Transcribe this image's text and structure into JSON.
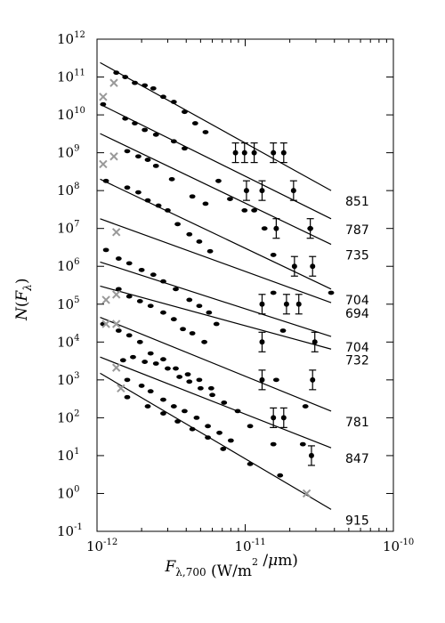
{
  "chart_data": {
    "type": "scatter",
    "title": "",
    "xlabel": "F_{λ,700} (W/m^2 /μm)",
    "ylabel": "N(F_λ)",
    "xscale": "log",
    "yscale": "log",
    "xlim": [
      1e-12,
      1e-10
    ],
    "ylim": [
      0.1,
      1000000000000.0
    ],
    "grid": false,
    "x_ticks": [
      {
        "base": "10",
        "exp": "-12",
        "value": 1e-12
      },
      {
        "base": "10",
        "exp": "-11",
        "value": 1e-11
      },
      {
        "base": "10",
        "exp": "-10",
        "value": 1e-10
      }
    ],
    "y_ticks": [
      {
        "base": "10",
        "exp": "-1",
        "value": 0.1
      },
      {
        "base": "10",
        "exp": "0",
        "value": 1
      },
      {
        "base": "10",
        "exp": "1",
        "value": 10
      },
      {
        "base": "10",
        "exp": "2",
        "value": 100
      },
      {
        "base": "10",
        "exp": "3",
        "value": 1000
      },
      {
        "base": "10",
        "exp": "4",
        "value": 10000
      },
      {
        "base": "10",
        "exp": "5",
        "value": 100000
      },
      {
        "base": "10",
        "exp": "6",
        "value": 1000000
      },
      {
        "base": "10",
        "exp": "7",
        "value": 10000000
      },
      {
        "base": "10",
        "exp": "8",
        "value": 100000000
      },
      {
        "base": "10",
        "exp": "9",
        "value": 1000000000
      },
      {
        "base": "10",
        "exp": "10",
        "value": 10000000000
      },
      {
        "base": "10",
        "exp": "11",
        "value": 100000000000
      },
      {
        "base": "10",
        "exp": "12",
        "value": 1000000000000
      }
    ],
    "series": [
      {
        "label": "851",
        "fit": {
          "x": [
            1.05e-12,
            3.8e-11
          ],
          "y": [
            240000000000.0,
            100000000.0
          ]
        },
        "points": [
          [
            1.35e-12,
            130000000000.0
          ],
          [
            1.55e-12,
            100000000000.0
          ],
          [
            1.8e-12,
            70000000000.0
          ],
          [
            2.1e-12,
            60000000000.0
          ],
          [
            2.4e-12,
            50000000000.0
          ],
          [
            2.8e-12,
            30000000000.0
          ],
          [
            3.3e-12,
            22000000000.0
          ],
          [
            3.9e-12,
            12000000000.0
          ],
          [
            4.6e-12,
            6000000000.0
          ],
          [
            5.4e-12,
            3500000000.0
          ]
        ],
        "error_points": [
          [
            8.6e-12,
            1000000000.0
          ],
          [
            9.9e-12,
            1000000000.0
          ],
          [
            1.15e-11,
            1000000000.0
          ],
          [
            1.55e-11,
            1000000000.0
          ],
          [
            1.82e-11,
            1000000000.0
          ]
        ],
        "rejected": [
          [
            1.1e-12,
            30000000000.0
          ],
          [
            1.3e-12,
            70000000000.0
          ]
        ],
        "color": "#000000",
        "rejected_color": "#999999"
      },
      {
        "label": "787",
        "fit": {
          "x": [
            1.05e-12,
            3.8e-11
          ],
          "y": [
            19000000000.0,
            18000000.0
          ]
        },
        "points": [
          [
            1.1e-12,
            19000000000.0
          ],
          [
            1.55e-12,
            8000000000.0
          ],
          [
            1.8e-12,
            6000000000.0
          ],
          [
            2.1e-12,
            4000000000.0
          ],
          [
            2.5e-12,
            3000000000.0
          ],
          [
            3.3e-12,
            2000000000.0
          ],
          [
            3.9e-12,
            1300000000.0
          ]
        ],
        "error_points": [
          [
            1.02e-11,
            100000000.0
          ],
          [
            1.3e-11,
            100000000.0
          ],
          [
            2.12e-11,
            100000000.0
          ]
        ],
        "rejected": [],
        "color": "#000000",
        "rejected_color": "#999999"
      },
      {
        "label": "735",
        "fit": {
          "x": [
            1.05e-12,
            3.8e-11
          ],
          "y": [
            3200000000.0,
            3800000.0
          ]
        },
        "points": [
          [
            1.6e-12,
            1100000000.0
          ],
          [
            1.9e-12,
            800000000.0
          ],
          [
            2.2e-12,
            650000000.0
          ],
          [
            2.5e-12,
            450000000.0
          ],
          [
            3.2e-12,
            200000000.0
          ],
          [
            4.4e-12,
            70000000.0
          ],
          [
            5.4e-12,
            45000000.0
          ],
          [
            6.6e-12,
            180000000.0
          ],
          [
            7.9e-12,
            60000000.0
          ],
          [
            9.9e-12,
            30000000.0
          ],
          [
            1.15e-11,
            30000000.0
          ],
          [
            1.35e-11,
            10000000.0
          ],
          [
            1.55e-11,
            2000000.0
          ],
          [
            2.75e-11,
            10000000.0
          ]
        ],
        "error_points": [
          [
            1.62e-11,
            10000000.0
          ],
          [
            2.75e-11,
            10000000.0
          ]
        ],
        "rejected": [
          [
            1.1e-12,
            500000000.0
          ],
          [
            1.3e-12,
            800000000.0
          ]
        ],
        "color": "#000000",
        "rejected_color": "#999999"
      },
      {
        "label": "704",
        "fit": {
          "x": [
            1.05e-12,
            3.8e-11
          ],
          "y": [
            200000000.0,
            250000.0
          ]
        },
        "points": [
          [
            1.15e-12,
            180000000.0
          ],
          [
            1.6e-12,
            120000000.0
          ],
          [
            1.9e-12,
            90000000.0
          ],
          [
            2.2e-12,
            55000000.0
          ],
          [
            2.6e-12,
            40000000.0
          ],
          [
            3e-12,
            30000000.0
          ],
          [
            3.5e-12,
            13000000.0
          ],
          [
            4.2e-12,
            7000000.0
          ],
          [
            4.9e-12,
            4500000.0
          ],
          [
            5.8e-12,
            2500000.0
          ],
          [
            3.8e-11,
            200000.0
          ]
        ],
        "error_points": [
          [
            2.15e-11,
            1000000.0
          ],
          [
            2.85e-11,
            1000000.0
          ]
        ],
        "rejected": [
          [
            1.35e-12,
            8000000.0
          ]
        ],
        "color": "#000000",
        "rejected_color": "#999999"
      },
      {
        "label": "694",
        "fit": {
          "x": [
            1.05e-12,
            3.8e-11
          ],
          "y": [
            18000000.0,
            110000.0
          ]
        },
        "points": [
          [
            1.15e-12,
            2700000.0
          ],
          [
            1.4e-12,
            1600000.0
          ],
          [
            1.65e-12,
            1200000.0
          ],
          [
            2e-12,
            800000.0
          ],
          [
            2.4e-12,
            600000.0
          ],
          [
            2.8e-12,
            400000.0
          ],
          [
            3.4e-12,
            250000.0
          ],
          [
            4.2e-12,
            130000.0
          ],
          [
            4.9e-12,
            90000.0
          ],
          [
            5.7e-12,
            60000.0
          ],
          [
            1.55e-11,
            200000.0
          ]
        ],
        "error_points": [
          [
            1.3e-11,
            100000.0
          ],
          [
            1.9e-11,
            100000.0
          ],
          [
            2.3e-11,
            100000.0
          ]
        ],
        "rejected": [],
        "color": "#000000",
        "rejected_color": "#999999"
      },
      {
        "label": "704",
        "fit": {
          "x": [
            1.05e-12,
            3.8e-11
          ],
          "y": [
            1300000.0,
            14000.0
          ]
        },
        "points": [
          [
            1.4e-12,
            250000.0
          ],
          [
            1.65e-12,
            160000.0
          ],
          [
            1.95e-12,
            120000.0
          ],
          [
            2.3e-12,
            90000.0
          ],
          [
            2.8e-12,
            60000.0
          ],
          [
            3.3e-12,
            40000.0
          ],
          [
            3.8e-12,
            22000.0
          ],
          [
            4.4e-12,
            17000.0
          ],
          [
            5.3e-12,
            10000.0
          ],
          [
            6.4e-12,
            30000.0
          ],
          [
            1.8e-11,
            20000.0
          ]
        ],
        "error_points": [
          [
            1.3e-11,
            10000.0
          ],
          [
            2.95e-11,
            10000.0
          ]
        ],
        "rejected": [
          [
            1.15e-12,
            130000.0
          ],
          [
            1.35e-12,
            180000.0
          ]
        ],
        "color": "#000000",
        "rejected_color": "#999999"
      },
      {
        "label": "732",
        "fit": {
          "x": [
            1.05e-12,
            3.8e-11
          ],
          "y": [
            300000.0,
            6500.0
          ]
        },
        "points": [
          [
            1.1e-12,
            30000.0
          ],
          [
            1.4e-12,
            20000.0
          ],
          [
            1.65e-12,
            15000.0
          ],
          [
            1.95e-12,
            10000.0
          ],
          [
            2.3e-12,
            5000.0
          ],
          [
            2.8e-12,
            3500.0
          ],
          [
            3.4e-12,
            2000.0
          ],
          [
            4.1e-12,
            1400.0
          ],
          [
            4.9e-12,
            1000.0
          ],
          [
            5.9e-12,
            600.0
          ],
          [
            1.62e-11,
            1000.0
          ]
        ],
        "error_points": [
          [
            1.3e-11,
            1000.0
          ],
          [
            2.85e-11,
            1000.0
          ]
        ],
        "rejected": [
          [
            1.15e-12,
            30000.0
          ],
          [
            1.35e-12,
            30000.0
          ]
        ],
        "color": "#000000",
        "rejected_color": "#999999"
      },
      {
        "label": "781",
        "fit": {
          "x": [
            1.05e-12,
            3.8e-11
          ],
          "y": [
            45000.0,
            150.0
          ]
        },
        "points": [
          [
            1.5e-12,
            3300.0
          ],
          [
            1.75e-12,
            4000.0
          ],
          [
            2.1e-12,
            3000.0
          ],
          [
            2.5e-12,
            2700.0
          ],
          [
            3e-12,
            2000.0
          ],
          [
            3.6e-12,
            1200.0
          ],
          [
            4.2e-12,
            900.0
          ],
          [
            5e-12,
            600.0
          ],
          [
            6e-12,
            400.0
          ],
          [
            7.2e-12,
            250.0
          ],
          [
            8.9e-12,
            150.0
          ],
          [
            1.08e-11,
            60.0
          ],
          [
            2.55e-11,
            200.0
          ]
        ],
        "error_points": [
          [
            1.55e-11,
            100.0
          ],
          [
            1.82e-11,
            100.0
          ]
        ],
        "rejected": [
          [
            1.35e-12,
            2100.0
          ]
        ],
        "color": "#000000",
        "rejected_color": "#999999"
      },
      {
        "label": "847",
        "fit": {
          "x": [
            1.05e-12,
            3.8e-11
          ],
          "y": [
            4000.0,
            16.0
          ]
        },
        "points": [
          [
            1.6e-12,
            1000.0
          ],
          [
            2e-12,
            700.0
          ],
          [
            2.3e-12,
            500.0
          ],
          [
            2.8e-12,
            300.0
          ],
          [
            3.3e-12,
            200.0
          ],
          [
            3.9e-12,
            150.0
          ],
          [
            4.7e-12,
            100.0
          ],
          [
            5.6e-12,
            60.0
          ],
          [
            6.7e-12,
            40.0
          ],
          [
            8e-12,
            25.0
          ],
          [
            1.55e-11,
            20.0
          ],
          [
            2.45e-11,
            20.0
          ]
        ],
        "error_points": [
          [
            2.8e-11,
            10.0
          ]
        ],
        "rejected": [
          [
            1.45e-12,
            600.0
          ]
        ],
        "color": "#000000",
        "rejected_color": "#999999"
      },
      {
        "label": "915",
        "fit": {
          "x": [
            1.05e-12,
            3.8e-11
          ],
          "y": [
            1500.0,
            0.38
          ]
        },
        "points": [
          [
            1.6e-12,
            350.0
          ],
          [
            2.2e-12,
            200.0
          ],
          [
            2.8e-12,
            130.0
          ],
          [
            3.5e-12,
            80.0
          ],
          [
            4.4e-12,
            50.0
          ],
          [
            5.6e-12,
            30.0
          ],
          [
            7.1e-12,
            15.0
          ],
          [
            1.08e-11,
            6
          ],
          [
            1.72e-11,
            3
          ]
        ],
        "error_points": [],
        "rejected": [
          [
            2.6e-11,
            1
          ]
        ],
        "color": "#000000",
        "rejected_color": "#999999"
      }
    ]
  }
}
